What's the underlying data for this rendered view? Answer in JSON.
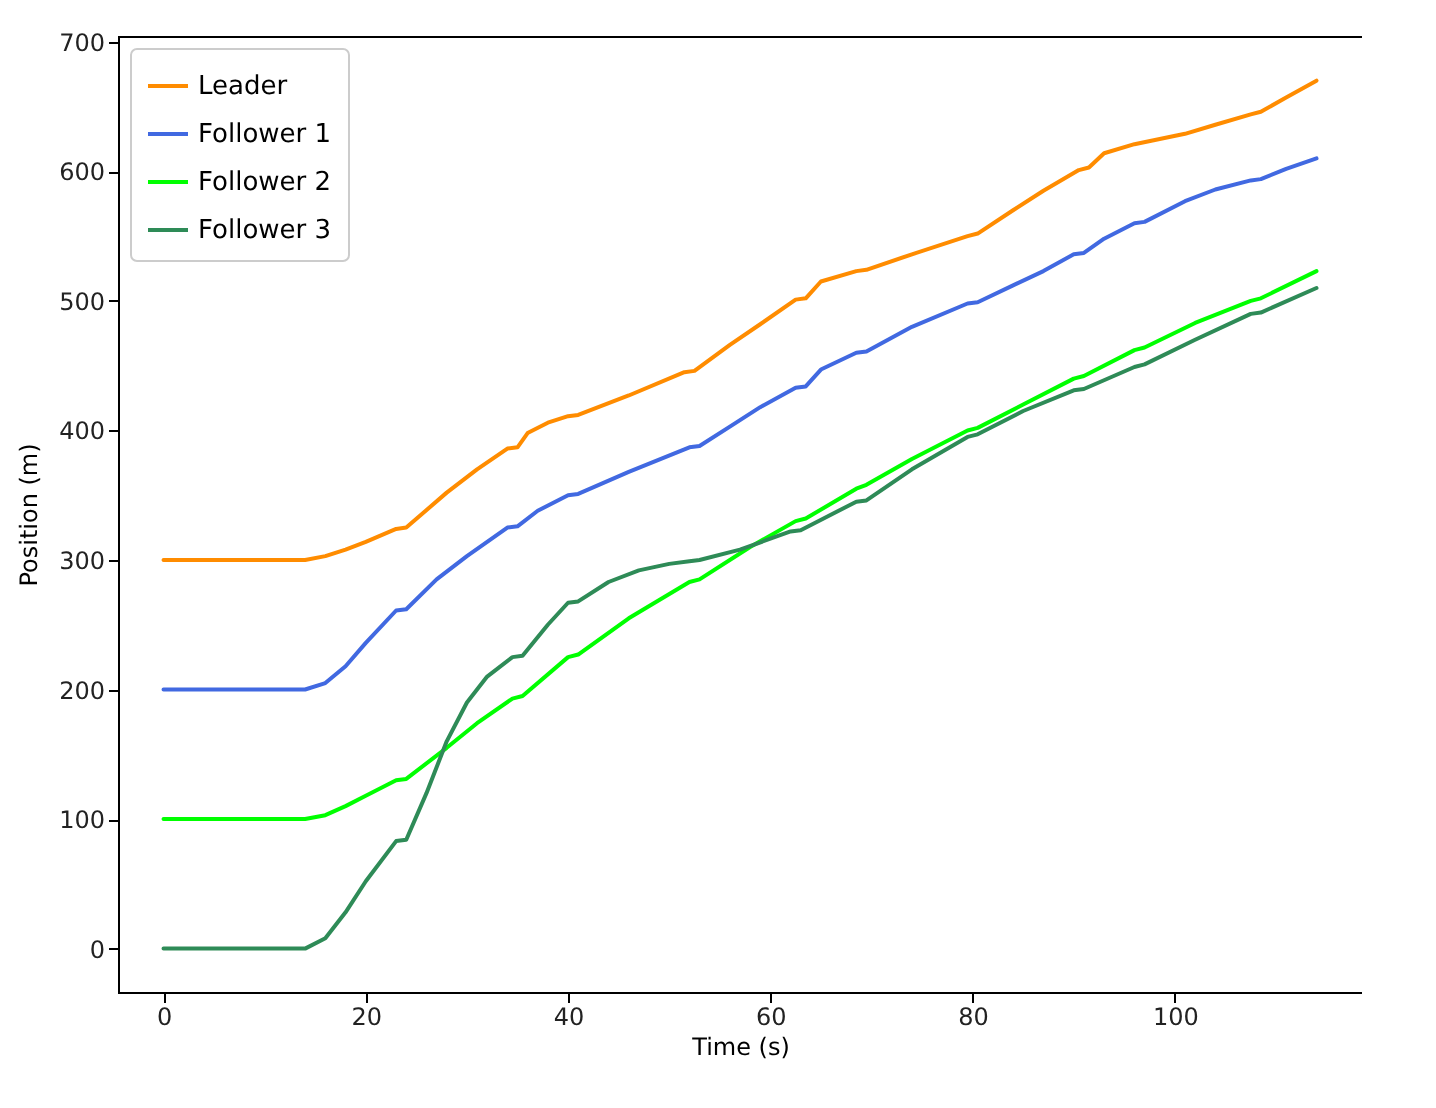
{
  "chart_data": {
    "type": "line",
    "xlabel": "Time (s)",
    "ylabel": "Position (m)",
    "xlim": [
      -4.5,
      118.5
    ],
    "ylim": [
      -33.5,
      704.5
    ],
    "xticks": [
      0,
      20,
      40,
      60,
      80,
      100
    ],
    "yticks": [
      0,
      100,
      200,
      300,
      400,
      500,
      600,
      700
    ],
    "grid": false,
    "legend": "top left",
    "marker": "none",
    "line_style": "solid",
    "series": [
      {
        "name": "Leader",
        "color": "#ff8c00",
        "x": [
          0,
          14,
          16,
          18,
          20,
          23,
          24,
          28,
          31,
          34,
          35,
          36,
          38,
          40,
          41,
          46,
          51.5,
          52.5,
          56,
          59,
          62.5,
          63.5,
          65,
          68.5,
          69.5,
          74,
          79.5,
          80.5,
          84,
          87,
          90.5,
          91.5,
          93,
          96,
          101,
          104,
          107.5,
          108.5,
          111,
          114
        ],
        "values": [
          300,
          300,
          303,
          308,
          314,
          324,
          325,
          352,
          370,
          386,
          387,
          398,
          406,
          411,
          412,
          427,
          445,
          446,
          466,
          482,
          501,
          502,
          515,
          523,
          524,
          536,
          550,
          552,
          570,
          585,
          601,
          603,
          614,
          621,
          629,
          636,
          644,
          646,
          657,
          670
        ]
      },
      {
        "name": "Follower 1",
        "color": "#4169e1",
        "x": [
          0,
          14,
          16,
          18,
          20,
          23,
          24,
          27,
          30,
          34,
          35,
          37,
          40,
          41,
          46,
          52,
          53,
          56,
          59,
          62.5,
          63.5,
          65,
          68.5,
          69.5,
          74,
          79.5,
          80.5,
          84,
          87,
          90,
          91,
          93,
          96,
          97,
          101,
          104,
          107.5,
          108.5,
          111,
          114
        ],
        "values": [
          200,
          200,
          205,
          218,
          236,
          261,
          262,
          285,
          303,
          325,
          326,
          338,
          350,
          351,
          368,
          387,
          388,
          403,
          418,
          433,
          434,
          447,
          460,
          461,
          480,
          498,
          499,
          512,
          523,
          536,
          537,
          548,
          560,
          561,
          577,
          586,
          593,
          594,
          602,
          610
        ]
      },
      {
        "name": "Follower 2",
        "color": "#00ff00",
        "x": [
          0,
          14,
          16,
          18,
          20,
          23,
          24,
          28,
          31,
          34.5,
          35.5,
          40,
          41,
          46,
          52,
          53,
          58,
          62.5,
          63.5,
          68.5,
          69.5,
          74,
          79.5,
          80.5,
          85,
          90,
          91,
          96,
          97,
          102,
          107.5,
          108.5,
          114
        ],
        "values": [
          100,
          100,
          103,
          110,
          118,
          130,
          131,
          155,
          174,
          193,
          195,
          225,
          227,
          255,
          283,
          285,
          310,
          330,
          332,
          355,
          358,
          378,
          400,
          402,
          420,
          440,
          442,
          462,
          464,
          483,
          500,
          502,
          523
        ]
      },
      {
        "name": "Follower 3",
        "color": "#2e8b57",
        "x": [
          0,
          14,
          16,
          18,
          20,
          23,
          24,
          26,
          28,
          30,
          32,
          34.5,
          35.5,
          38,
          40,
          41,
          44,
          47,
          50,
          52,
          53,
          57,
          62,
          63,
          68.5,
          69.5,
          74,
          79.5,
          80.5,
          85,
          90,
          91,
          96,
          97,
          102,
          107.5,
          108.5,
          114
        ],
        "values": [
          0,
          0,
          8,
          28,
          52,
          83,
          84,
          120,
          160,
          190,
          210,
          225,
          226,
          250,
          267,
          268,
          283,
          292,
          297,
          299,
          300,
          308,
          322,
          323,
          345,
          346,
          370,
          395,
          397,
          415,
          431,
          432,
          449,
          451,
          470,
          490,
          491,
          510
        ]
      }
    ]
  }
}
